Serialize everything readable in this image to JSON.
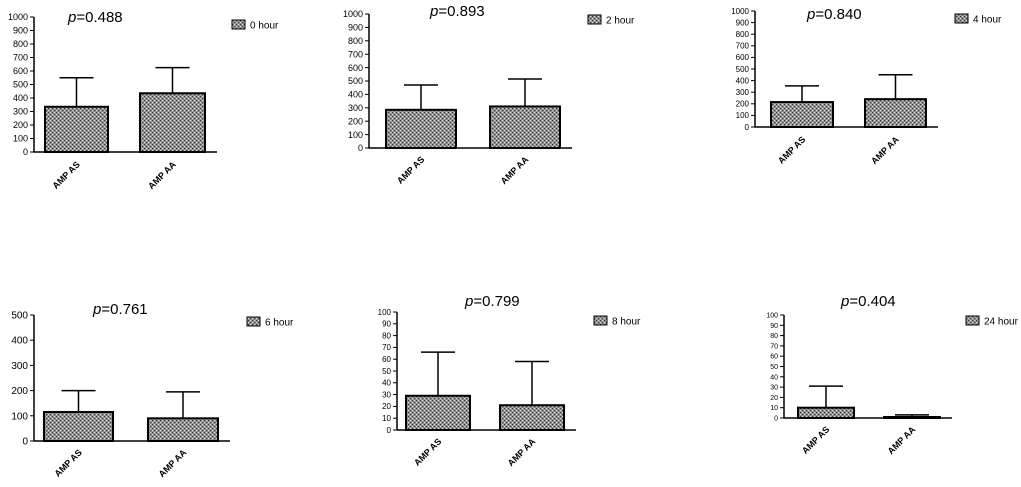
{
  "chart_data": [
    {
      "type": "bar",
      "categories": [
        "AMP AS",
        "AMP AA"
      ],
      "values": [
        335,
        435
      ],
      "errors": [
        215,
        190
      ],
      "p_prefix": "p",
      "p_value": "=0.488",
      "legend": "0 hour",
      "ylim": [
        0,
        1000
      ],
      "yticks": [
        "0",
        "100",
        "200",
        "300",
        "400",
        "500",
        "600",
        "700",
        "800",
        "900",
        "1000"
      ],
      "legend_position": "top-right"
    },
    {
      "type": "bar",
      "categories": [
        "AMP AS",
        "AMP AA"
      ],
      "values": [
        285,
        310
      ],
      "errors": [
        185,
        205
      ],
      "p_prefix": "p",
      "p_value": "=0.893",
      "legend": "2 hour",
      "ylim": [
        0,
        1000
      ],
      "yticks": [
        "0",
        "100",
        "200",
        "300",
        "400",
        "500",
        "600",
        "700",
        "800",
        "900",
        "1000"
      ],
      "legend_position": "top-right"
    },
    {
      "type": "bar",
      "categories": [
        "AMP AS",
        "AMP AA"
      ],
      "values": [
        215,
        240
      ],
      "errors": [
        140,
        210
      ],
      "p_prefix": "p",
      "p_value": "=0.840",
      "legend": "4 hour",
      "ylim": [
        0,
        1000
      ],
      "yticks": [
        "0",
        "100",
        "200",
        "300",
        "400",
        "500",
        "600",
        "700",
        "800",
        "900",
        "1000"
      ],
      "legend_position": "top-right"
    },
    {
      "type": "bar",
      "categories": [
        "AMP AS",
        "AMP AA"
      ],
      "values": [
        115,
        90
      ],
      "errors": [
        85,
        105
      ],
      "p_prefix": "p",
      "p_value": "=0.761",
      "legend": "6 hour",
      "ylim": [
        0,
        500
      ],
      "yticks": [
        "0",
        "100",
        "200",
        "300",
        "400",
        "500"
      ],
      "legend_position": "top-right"
    },
    {
      "type": "bar",
      "categories": [
        "AMP AS",
        "AMP AA"
      ],
      "values": [
        29,
        21
      ],
      "errors": [
        37,
        37
      ],
      "p_prefix": "p",
      "p_value": "=0.799",
      "legend": "8 hour",
      "ylim": [
        0,
        100
      ],
      "yticks": [
        "0",
        "10",
        "20",
        "30",
        "40",
        "50",
        "60",
        "70",
        "80",
        "90",
        "100"
      ],
      "legend_position": "top-right"
    },
    {
      "type": "bar",
      "categories": [
        "AMP AS",
        "AMP AA"
      ],
      "values": [
        10,
        1
      ],
      "errors": [
        21,
        2
      ],
      "p_prefix": "p",
      "p_value": "=0.404",
      "legend": "24 hour",
      "ylim": [
        0,
        100
      ],
      "yticks": [
        "0",
        "10",
        "20",
        "30",
        "40",
        "50",
        "60",
        "70",
        "80",
        "90",
        "100"
      ],
      "legend_position": "top-right"
    }
  ]
}
